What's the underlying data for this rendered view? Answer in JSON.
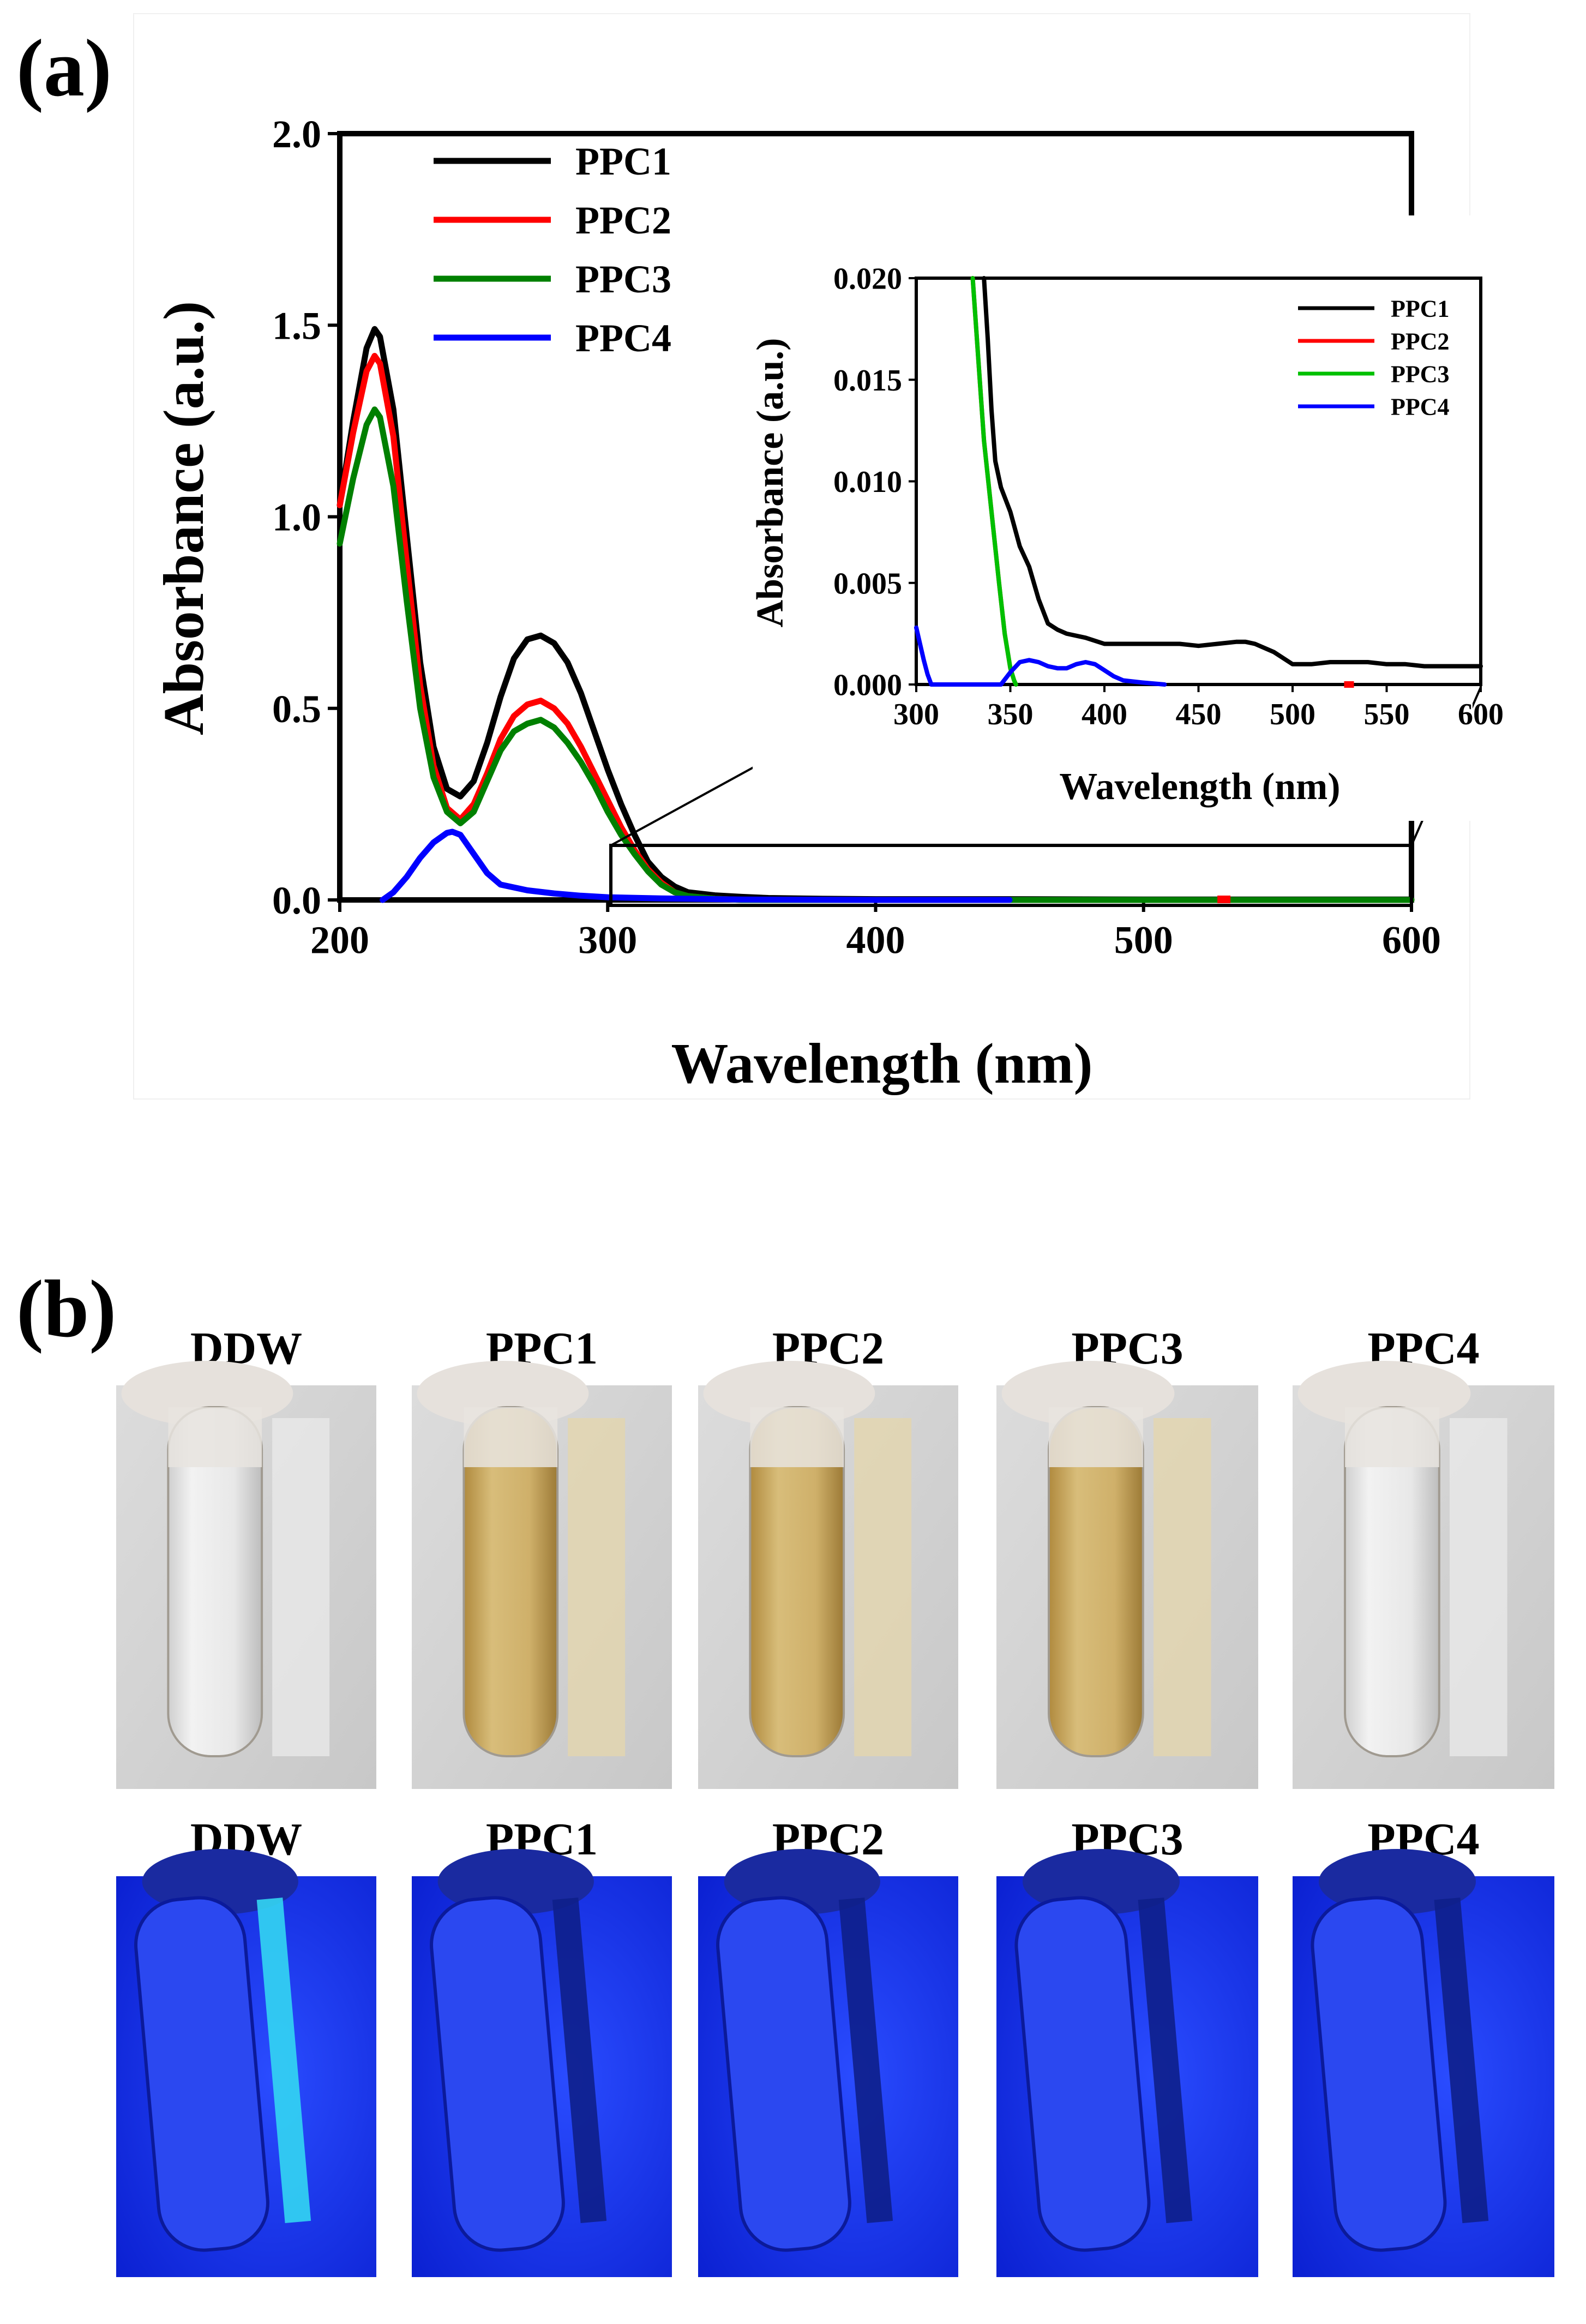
{
  "panel_labels": {
    "a": "(a)",
    "b": "(b)"
  },
  "colors": {
    "PPC1": "#000000",
    "PPC2": "#ff0000",
    "PPC3": "#008000",
    "PPC4": "#0000ff",
    "PPC3_inset": "#00c000"
  },
  "chart_data": [
    {
      "type": "line",
      "xlabel": "Wavelength (nm)",
      "ylabel": "Absorbance (a.u.)",
      "xlim": [
        200,
        600
      ],
      "ylim": [
        0,
        2.0
      ],
      "xticks": [
        "200",
        "300",
        "400",
        "500",
        "600"
      ],
      "yticks": [
        "0.0",
        "0.5",
        "1.0",
        "1.5",
        "2.0"
      ],
      "legend": "top-left",
      "series": [
        {
          "name": "PPC1",
          "x": [
            200,
            205,
            210,
            213,
            215,
            220,
            225,
            230,
            235,
            240,
            245,
            250,
            255,
            260,
            265,
            270,
            275,
            280,
            285,
            290,
            295,
            300,
            305,
            310,
            315,
            320,
            325,
            330,
            340,
            350,
            360,
            380,
            400,
            450,
            500,
            550,
            600
          ],
          "y": [
            1.03,
            1.25,
            1.44,
            1.49,
            1.47,
            1.28,
            0.95,
            0.62,
            0.4,
            0.29,
            0.27,
            0.31,
            0.41,
            0.53,
            0.63,
            0.68,
            0.69,
            0.67,
            0.62,
            0.54,
            0.44,
            0.34,
            0.25,
            0.17,
            0.1,
            0.06,
            0.035,
            0.02,
            0.012,
            0.008,
            0.005,
            0.003,
            0.002,
            0.002,
            0.001,
            0.001,
            0.001
          ]
        },
        {
          "name": "PPC2",
          "x": [
            200,
            205,
            210,
            213,
            215,
            220,
            225,
            230,
            235,
            240,
            245,
            250,
            255,
            260,
            265,
            270,
            275,
            280,
            285,
            290,
            295,
            300,
            305,
            310,
            315,
            320,
            325,
            330,
            340,
            350,
            400,
            500,
            600
          ],
          "y": [
            1.03,
            1.22,
            1.38,
            1.42,
            1.4,
            1.21,
            0.88,
            0.56,
            0.35,
            0.24,
            0.21,
            0.25,
            0.33,
            0.42,
            0.48,
            0.51,
            0.52,
            0.5,
            0.46,
            0.4,
            0.33,
            0.26,
            0.19,
            0.13,
            0.08,
            0.045,
            0.02,
            0.01,
            0.003,
            0.0,
            0.0,
            0.0,
            0.0
          ]
        },
        {
          "name": "PPC3",
          "x": [
            200,
            205,
            210,
            213,
            215,
            220,
            225,
            230,
            235,
            240,
            245,
            250,
            255,
            260,
            265,
            270,
            275,
            280,
            285,
            290,
            295,
            300,
            305,
            310,
            315,
            320,
            325,
            330,
            340,
            350,
            400,
            500,
            600
          ],
          "y": [
            0.93,
            1.1,
            1.24,
            1.28,
            1.26,
            1.08,
            0.78,
            0.5,
            0.32,
            0.23,
            0.2,
            0.23,
            0.31,
            0.39,
            0.44,
            0.46,
            0.47,
            0.45,
            0.41,
            0.36,
            0.3,
            0.23,
            0.17,
            0.12,
            0.075,
            0.04,
            0.02,
            0.01,
            0.003,
            0.0,
            0.0,
            0.0,
            0.0
          ]
        },
        {
          "name": "PPC4",
          "x": [
            216,
            220,
            225,
            230,
            235,
            240,
            242,
            245,
            250,
            255,
            260,
            270,
            280,
            290,
            300,
            320,
            350,
            400,
            450
          ],
          "y": [
            0.0,
            0.02,
            0.06,
            0.11,
            0.15,
            0.175,
            0.178,
            0.17,
            0.12,
            0.07,
            0.04,
            0.025,
            0.017,
            0.011,
            0.007,
            0.004,
            0.001,
            0.0,
            0.0
          ]
        }
      ]
    },
    {
      "type": "line",
      "role": "inset",
      "xlabel": "Wavelength (nm)",
      "ylabel": "Absorbance (a.u.)",
      "xlim": [
        300,
        600
      ],
      "ylim": [
        0,
        0.02
      ],
      "xticks": [
        "300",
        "350",
        "400",
        "450",
        "500",
        "550",
        "600"
      ],
      "yticks": [
        "0.000",
        "0.005",
        "0.010",
        "0.015",
        "0.020"
      ],
      "legend": "top-right",
      "series": [
        {
          "name": "PPC1",
          "x": [
            336,
            338,
            340,
            342,
            345,
            350,
            355,
            360,
            365,
            370,
            375,
            380,
            390,
            400,
            420,
            440,
            450,
            460,
            470,
            475,
            480,
            490,
            500,
            510,
            520,
            530,
            540,
            550,
            560,
            570,
            580,
            600
          ],
          "y": [
            0.02,
            0.017,
            0.0135,
            0.011,
            0.0097,
            0.0085,
            0.0068,
            0.0058,
            0.0042,
            0.003,
            0.0027,
            0.0025,
            0.0023,
            0.002,
            0.002,
            0.002,
            0.0019,
            0.002,
            0.0021,
            0.0021,
            0.002,
            0.0016,
            0.001,
            0.001,
            0.0011,
            0.0011,
            0.0011,
            0.001,
            0.001,
            0.0009,
            0.0009,
            0.0009
          ]
        },
        {
          "name": "PPC2",
          "x": [
            330,
            333,
            336,
            340,
            344,
            347,
            350,
            352,
            353
          ],
          "y": [
            0.02,
            0.016,
            0.012,
            0.0085,
            0.005,
            0.0025,
            0.0008,
            0.0002,
            0.0
          ]
        },
        {
          "name": "PPC3",
          "x": [
            330,
            333,
            336,
            340,
            344,
            347,
            350,
            352,
            353
          ],
          "y": [
            0.02,
            0.016,
            0.012,
            0.0085,
            0.005,
            0.0025,
            0.0008,
            0.0002,
            0.0
          ]
        },
        {
          "name": "PPC4",
          "x": [
            300,
            302,
            304,
            306,
            308,
            345,
            350,
            355,
            360,
            365,
            370,
            375,
            380,
            385,
            390,
            395,
            400,
            405,
            410,
            420,
            432
          ],
          "y": [
            0.0028,
            0.002,
            0.0012,
            0.0005,
            0.0,
            0.0,
            0.0006,
            0.0011,
            0.0012,
            0.0011,
            0.0009,
            0.0008,
            0.0008,
            0.001,
            0.0011,
            0.001,
            0.0007,
            0.0004,
            0.0002,
            0.0001,
            0.0
          ]
        }
      ]
    }
  ],
  "photo_rows": [
    {
      "mode": "daylight",
      "labels": [
        "DDW",
        "PPC1",
        "PPC2",
        "PPC3",
        "PPC4"
      ]
    },
    {
      "mode": "uv",
      "labels": [
        "DDW",
        "PPC1",
        "PPC2",
        "PPC3",
        "PPC4"
      ]
    }
  ]
}
